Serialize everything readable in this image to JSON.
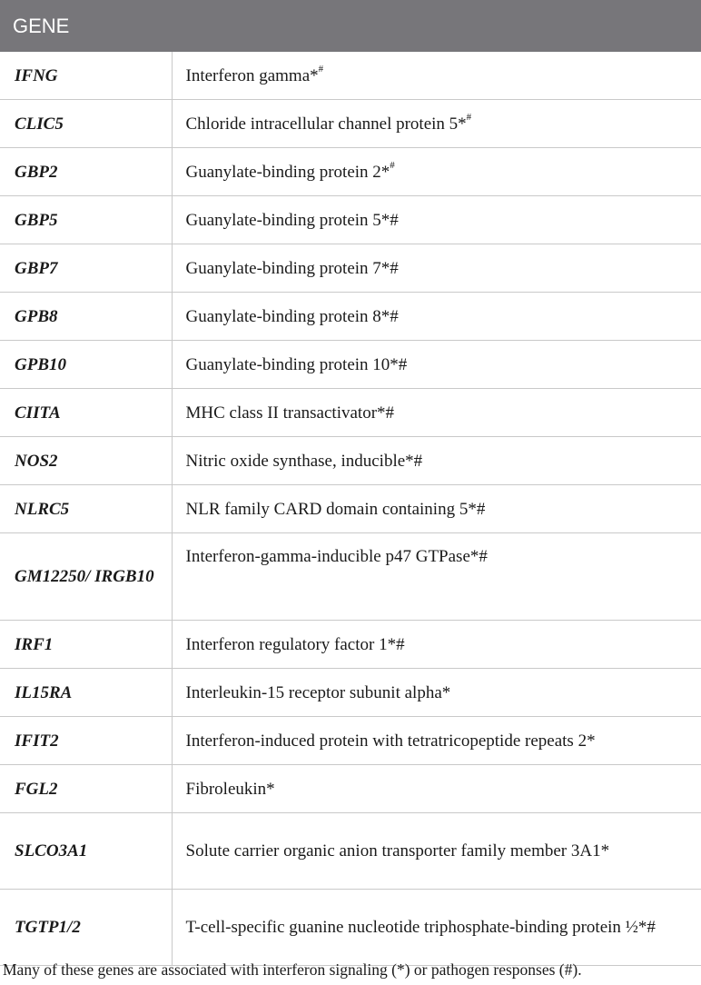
{
  "table": {
    "headers": [
      "GENE",
      ""
    ],
    "rows": [
      {
        "gene": "IFNG",
        "desc": "Interferon gamma*",
        "sup": "#"
      },
      {
        "gene": "CLIC5",
        "desc": "Chloride intracellular channel protein 5*",
        "sup": "#"
      },
      {
        "gene": "GBP2",
        "desc": "Guanylate-binding protein 2*",
        "sup": "#"
      },
      {
        "gene": "GBP5",
        "desc": "Guanylate-binding protein 5*#"
      },
      {
        "gene": "GBP7",
        "desc": "Guanylate-binding protein 7*#"
      },
      {
        "gene": "GPB8",
        "desc": "Guanylate-binding protein 8*#"
      },
      {
        "gene": "GPB10",
        "desc": "Guanylate-binding protein 10*#"
      },
      {
        "gene": "CIITA",
        "desc": "MHC class II transactivator*#"
      },
      {
        "gene": "NOS2",
        "desc": "Nitric oxide synthase, inducible*#"
      },
      {
        "gene": "NLRC5",
        "desc": "NLR family CARD domain containing 5*#"
      },
      {
        "gene": "GM12250/ IRGB10",
        "desc": "Interferon-gamma-inducible p47 GTPase*#"
      },
      {
        "gene": "IRF1",
        "desc": "Interferon regulatory factor 1*#"
      },
      {
        "gene": "IL15RA",
        "desc": "Interleukin-15 receptor subunit alpha*"
      },
      {
        "gene": "IFIT2",
        "desc": "Interferon-induced protein with tetratricopeptide repeats 2*"
      },
      {
        "gene": "FGL2",
        "desc": "Fibroleukin*"
      },
      {
        "gene": "SLCO3A1",
        "desc": "Solute carrier organic anion transporter family member 3A1*"
      },
      {
        "gene": "TGTP1/2",
        "desc": "T-cell-specific guanine nucleotide triphosphate-binding protein ½*#"
      }
    ]
  },
  "footnote": "Many of these genes are associated with interferon signaling (*) or pathogen responses (#)."
}
